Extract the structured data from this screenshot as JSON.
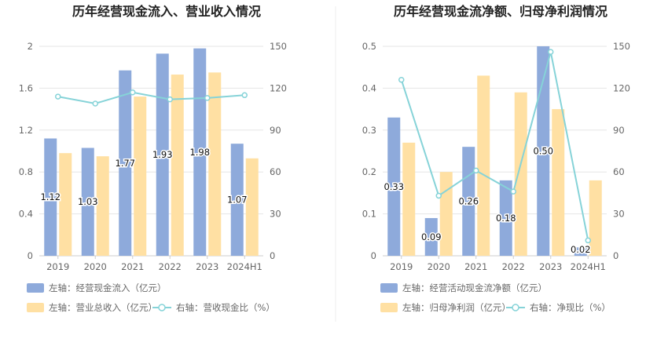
{
  "colors": {
    "bar1": "#8eaadb",
    "bar2": "#ffe0a3",
    "line": "#86d3d8",
    "divider": "#eeeeee"
  },
  "chart_data": [
    {
      "type": "bar",
      "title": "历年经营现金流入、营业收入情况",
      "categories": [
        "2019",
        "2020",
        "2021",
        "2022",
        "2023",
        "2024H1"
      ],
      "left_axis": {
        "min": 0,
        "max": 2,
        "ticks": [
          "0",
          "0.4",
          "0.8",
          "1.2",
          "1.6",
          "2"
        ]
      },
      "right_axis": {
        "min": 0,
        "max": 150,
        "ticks": [
          "0",
          "30",
          "60",
          "90",
          "120",
          "150"
        ]
      },
      "series": [
        {
          "name": "左轴：经营现金流入（亿元）",
          "kind": "bar",
          "axis": "left",
          "values": [
            1.12,
            1.03,
            1.77,
            1.93,
            1.98,
            1.07
          ],
          "labels": [
            "1.12",
            "1.03",
            "1.77",
            "1.93",
            "1.98",
            "1.07"
          ]
        },
        {
          "name": "左轴：营业总收入（亿元）",
          "kind": "bar",
          "axis": "left",
          "values": [
            0.98,
            0.95,
            1.52,
            1.73,
            1.75,
            0.93
          ]
        },
        {
          "name": "右轴：营收现金比（%）",
          "kind": "line",
          "axis": "right",
          "values": [
            114,
            109,
            117,
            112,
            113,
            115
          ]
        }
      ],
      "grid": true,
      "legend": "bottom-left"
    },
    {
      "type": "bar",
      "title": "历年经营现金流净额、归母净利润情况",
      "categories": [
        "2019",
        "2020",
        "2021",
        "2022",
        "2023",
        "2024H1"
      ],
      "left_axis": {
        "min": 0,
        "max": 0.5,
        "ticks": [
          "0",
          "0.1",
          "0.2",
          "0.3",
          "0.4",
          "0.5"
        ]
      },
      "right_axis": {
        "min": 0,
        "max": 150,
        "ticks": [
          "0",
          "30",
          "60",
          "90",
          "120",
          "150"
        ]
      },
      "series": [
        {
          "name": "左轴：经营活动现金流净额（亿元）",
          "kind": "bar",
          "axis": "left",
          "values": [
            0.33,
            0.09,
            0.26,
            0.18,
            0.5,
            0.02
          ],
          "labels": [
            "0.33",
            "0.09",
            "0.26",
            "0.18",
            "0.50",
            "0.02"
          ]
        },
        {
          "name": "左轴：归母净利润（亿元）",
          "kind": "bar",
          "axis": "left",
          "values": [
            0.27,
            0.2,
            0.43,
            0.39,
            0.35,
            0.18
          ]
        },
        {
          "name": "右轴：净现比（%）",
          "kind": "line",
          "axis": "right",
          "values": [
            126,
            43,
            61,
            46,
            146,
            11
          ]
        }
      ],
      "grid": true,
      "legend": "bottom-left"
    }
  ]
}
